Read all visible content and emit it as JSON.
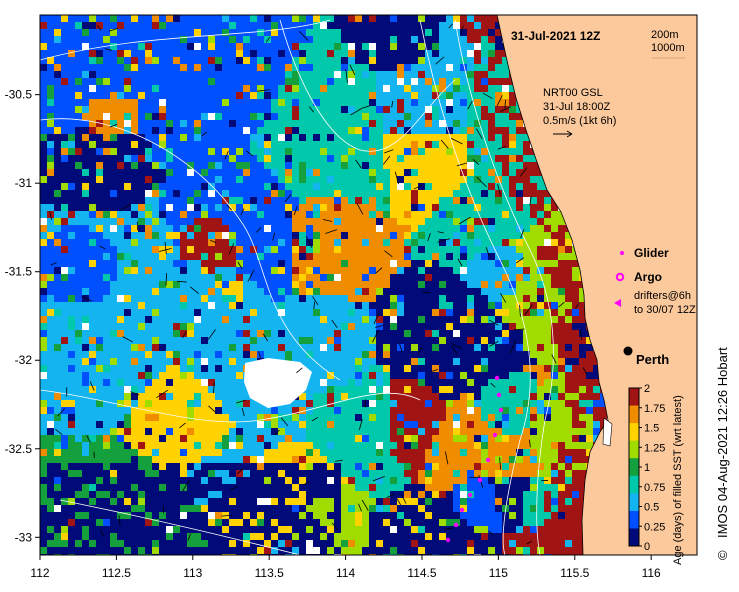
{
  "map": {
    "title": "31-Jul-2021 12Z",
    "depth_contours": [
      "200m",
      "1000m"
    ],
    "current_info": {
      "line1": "NRT00 GSL",
      "line2": "31-Jul 18:00Z",
      "scale": "0.5m/s (1kt 6h)"
    },
    "legend": {
      "glider": "Glider",
      "argo": "Argo",
      "drifters_line1": "drifters@6h",
      "drifters_line2": "to 30/07 12Z"
    },
    "city": "Perth",
    "credit": "IMOS 04-Aug-2021 12:26 Hobart",
    "copyright_symbol": "©",
    "x_ticks": [
      "112",
      "112.5",
      "113",
      "113.5",
      "114",
      "114.5",
      "115",
      "115.5",
      "116"
    ],
    "y_ticks": [
      "-30.5",
      "-31",
      "-31.5",
      "-32",
      "-32.5",
      "-33"
    ],
    "lon_range": [
      112,
      116.3
    ],
    "lat_range": [
      -33.1,
      -30.05
    ],
    "colorbar": {
      "label": "Age (days) of filled SST (wrt latest)",
      "ticks": [
        "0",
        "0.25",
        "0.5",
        "0.75",
        "1",
        "1.25",
        "1.5",
        "1.75",
        "2"
      ],
      "range": [
        0,
        2
      ],
      "colors": [
        "#000a78",
        "#0050ff",
        "#14b4f0",
        "#00c8aa",
        "#14a03c",
        "#a0dc00",
        "#ffd200",
        "#f08c00",
        "#a01414"
      ]
    },
    "land_color": "#fcc99d"
  }
}
